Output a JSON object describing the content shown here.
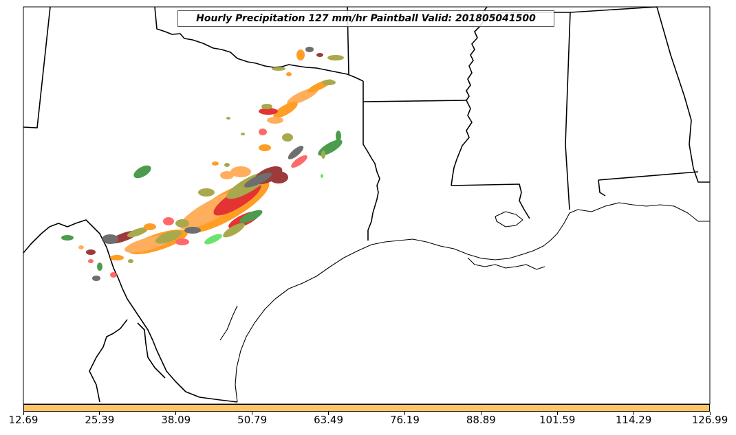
{
  "title": "Hourly Precipitation 127 mm/hr Paintball Valid: 201805041500",
  "colorbar": {
    "color": "#FDC468",
    "ticks": [
      "12.69",
      "25.39",
      "38.09",
      "50.79",
      "63.49",
      "76.19",
      "88.89",
      "101.59",
      "114.29",
      "126.99"
    ]
  },
  "palette": {
    "orange": "#FF8C00",
    "light_orange": "#FFA040",
    "olive": "#9A9A2E",
    "red": "#E01010",
    "dark_red": "#8B1A1A",
    "green": "#2E8B2E",
    "light_green": "#55DD55",
    "gray": "#555555",
    "pink": "#FF5050"
  }
}
